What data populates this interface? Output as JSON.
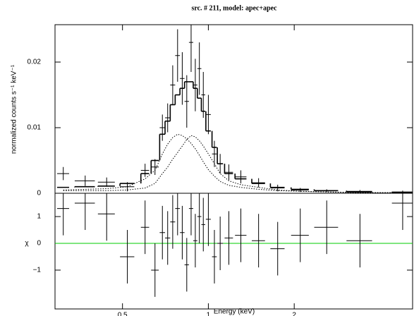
{
  "chart_data": [
    {
      "type": "spectrum",
      "title": "src. # 211, model: apec+apec",
      "ylabel": "normalized counts s⁻¹ keV⁻¹",
      "xscale": "log",
      "x": [
        0.31,
        0.37,
        0.44,
        0.52,
        0.6,
        0.65,
        0.69,
        0.72,
        0.75,
        0.78,
        0.81,
        0.84,
        0.87,
        0.9,
        0.93,
        0.96,
        1.0,
        1.05,
        1.1,
        1.18,
        1.3,
        1.5,
        1.75,
        2.1,
        2.6,
        3.4,
        4.8
      ],
      "xerr": [
        0.015,
        0.03,
        0.03,
        0.03,
        0.02,
        0.02,
        0.015,
        0.015,
        0.015,
        0.015,
        0.015,
        0.015,
        0.015,
        0.015,
        0.015,
        0.015,
        0.02,
        0.02,
        0.025,
        0.04,
        0.06,
        0.08,
        0.1,
        0.15,
        0.25,
        0.35,
        0.4
      ],
      "series": [
        {
          "color": "#000000",
          "style": "errorbar",
          "values": [
            0.003,
            0.0019,
            0.0017,
            0.001,
            0.0035,
            0.004,
            0.01,
            0.0115,
            0.0165,
            0.021,
            0.0175,
            0.014,
            0.023,
            0.0165,
            0.019,
            0.015,
            0.012,
            0.006,
            0.0045,
            0.0032,
            0.0025,
            0.0016,
            0.0008,
            0.0005,
            0.0004,
            0.0003,
            0.0002
          ],
          "errors": [
            0.001,
            0.0008,
            0.0007,
            0.0007,
            0.001,
            0.0012,
            0.002,
            0.0022,
            0.003,
            0.004,
            0.004,
            0.004,
            0.0045,
            0.004,
            0.004,
            0.0035,
            0.003,
            0.002,
            0.0015,
            0.0012,
            0.001,
            0.0007,
            0.0005,
            0.0003,
            0.0002,
            0.0002,
            0.0002
          ]
        },
        {
          "color": "#000000",
          "style": "step",
          "values": [
            0.0009,
            0.001,
            0.0011,
            0.0015,
            0.003,
            0.005,
            0.009,
            0.011,
            0.0135,
            0.015,
            0.016,
            0.017,
            0.017,
            0.016,
            0.0145,
            0.0125,
            0.0095,
            0.007,
            0.0045,
            0.003,
            0.0022,
            0.0015,
            0.0009,
            0.0006,
            0.0004,
            0.0002,
            0.0001
          ]
        },
        {
          "color": "#000000",
          "style": "dotted",
          "values": [
            0.0005,
            0.0006,
            0.0007,
            0.001,
            0.0022,
            0.0035,
            0.006,
            0.0075,
            0.0085,
            0.009,
            0.0088,
            0.0083,
            0.0076,
            0.0068,
            0.0058,
            0.0048,
            0.0036,
            0.0026,
            0.0018,
            0.0012,
            0.0009,
            0.0006,
            0.0004,
            0.0003,
            0.0002,
            0.0001,
            0.0001
          ]
        },
        {
          "color": "#000000",
          "style": "dotted",
          "values": [
            0.0004,
            0.0004,
            0.0004,
            0.0005,
            0.0008,
            0.0015,
            0.003,
            0.004,
            0.0052,
            0.0062,
            0.0072,
            0.0082,
            0.0088,
            0.0086,
            0.008,
            0.0072,
            0.006,
            0.0045,
            0.003,
            0.0019,
            0.0013,
            0.0009,
            0.0005,
            0.0003,
            0.0002,
            0.0001,
            0.0001
          ]
        }
      ],
      "xlim": [
        0.29,
        5.2
      ],
      "ylim": [
        0,
        0.0257
      ],
      "yticks": [
        0,
        0.01,
        0.02
      ]
    },
    {
      "type": "residuals",
      "ylabel": "χ",
      "xlabel": "Energy (keV)",
      "xscale": "log",
      "x": [
        0.31,
        0.37,
        0.44,
        0.52,
        0.6,
        0.65,
        0.69,
        0.72,
        0.75,
        0.78,
        0.81,
        0.84,
        0.87,
        0.9,
        0.93,
        0.96,
        1.0,
        1.05,
        1.1,
        1.18,
        1.3,
        1.5,
        1.75,
        2.1,
        2.6,
        3.4,
        4.8
      ],
      "xerr": [
        0.015,
        0.03,
        0.03,
        0.03,
        0.02,
        0.02,
        0.015,
        0.015,
        0.015,
        0.015,
        0.015,
        0.015,
        0.015,
        0.015,
        0.015,
        0.015,
        0.02,
        0.02,
        0.025,
        0.04,
        0.06,
        0.08,
        0.1,
        0.15,
        0.25,
        0.35,
        0.4
      ],
      "series": [
        {
          "color": "#000000",
          "values": [
            1.3,
            1.5,
            1.1,
            -0.5,
            0.6,
            -1.0,
            0.4,
            0.2,
            0.8,
            1.3,
            0.4,
            -0.8,
            1.3,
            0.1,
            1.0,
            0.7,
            0.9,
            -0.5,
            0.0,
            0.2,
            0.3,
            0.1,
            -0.2,
            0.3,
            0.6,
            0.1,
            1.5
          ],
          "errors": [
            1,
            1,
            1,
            1,
            1,
            1,
            1,
            1,
            1,
            1,
            1,
            1,
            1,
            1,
            1,
            1,
            1,
            1,
            1,
            1,
            1,
            1,
            1,
            1,
            1,
            1,
            1
          ]
        }
      ],
      "zero_line_color": "#00cc00",
      "xlim": [
        0.29,
        5.2
      ],
      "ylim": [
        -2.45,
        1.87
      ],
      "xticks": [
        0.5,
        1,
        2
      ],
      "yticks": [
        {
          "value": -1,
          "label": "−1"
        },
        0,
        1
      ]
    }
  ]
}
